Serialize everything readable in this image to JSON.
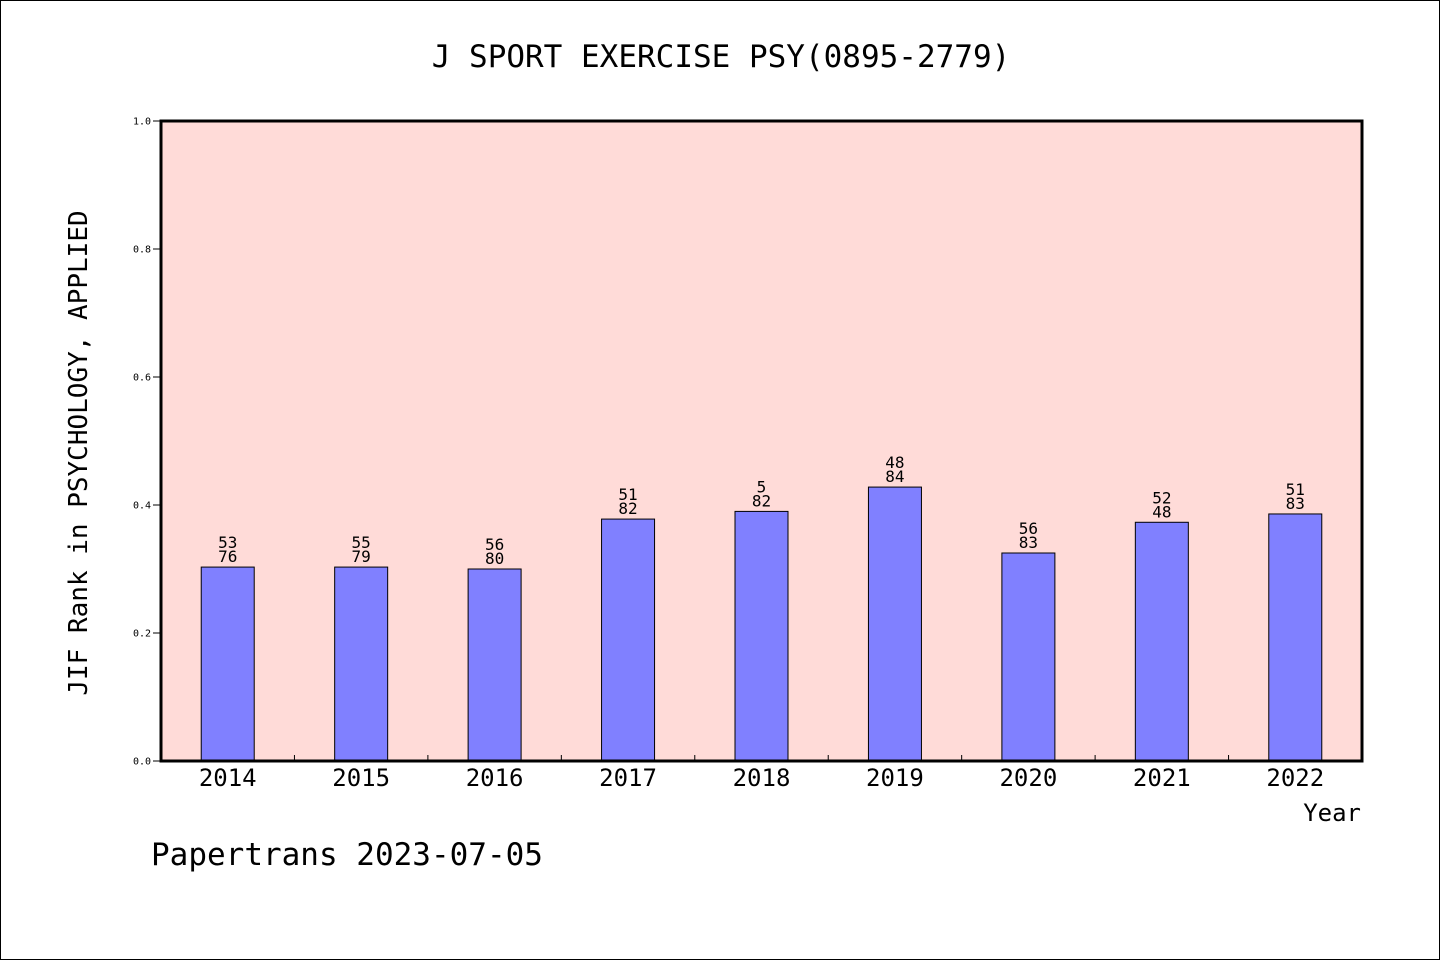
{
  "chart_data": {
    "type": "bar",
    "title": "J SPORT EXERCISE PSY(0895-2779)",
    "xlabel": "Year",
    "ylabel": "JIF Rank in PSYCHOLOGY, APPLIED",
    "ylim": [
      0,
      1.0
    ],
    "yticks": [
      "0.0",
      "0.2",
      "0.4",
      "0.6",
      "0.8",
      "1.0"
    ],
    "grid": false,
    "colors": {
      "plot_background": "#FFDBD8",
      "bar_fill": "#8080FF",
      "axis": "#000000"
    },
    "categories": [
      "2014",
      "2015",
      "2016",
      "2017",
      "2018",
      "2019",
      "2020",
      "2021",
      "2022"
    ],
    "values": [
      0.303,
      0.303,
      0.3,
      0.378,
      0.39,
      0.428,
      0.325,
      0.373,
      0.386
    ],
    "bar_labels": [
      [
        "53",
        "76"
      ],
      [
        "55",
        "79"
      ],
      [
        "56",
        "80"
      ],
      [
        "51",
        "82"
      ],
      [
        "5",
        "82"
      ],
      [
        "48",
        "84"
      ],
      [
        "56",
        "83"
      ],
      [
        "52",
        "48"
      ],
      [
        "51",
        "83"
      ]
    ]
  },
  "footer": "Papertrans 2023-07-05"
}
